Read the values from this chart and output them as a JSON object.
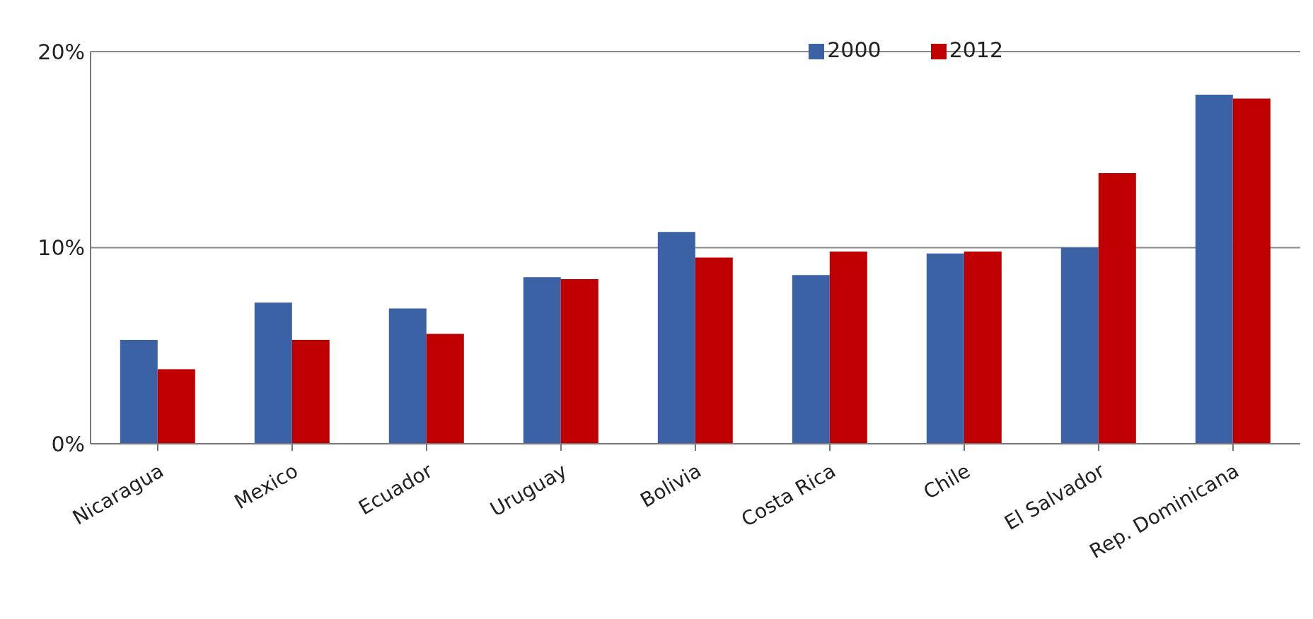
{
  "chart_data": {
    "type": "bar",
    "categories": [
      "Nicaragua",
      "Mexico",
      "Ecuador",
      "Uruguay",
      "Bolivia",
      "Costa Rica",
      "Chile",
      "El Salvador",
      "Rep. Dominicana"
    ],
    "series": [
      {
        "name": "2000",
        "color": "#3a62a4",
        "values": [
          5.3,
          7.2,
          6.9,
          8.5,
          10.8,
          8.6,
          9.7,
          10.0,
          17.8
        ]
      },
      {
        "name": "2012",
        "color": "#c00000",
        "values": [
          3.8,
          5.3,
          5.6,
          8.4,
          9.5,
          9.8,
          9.8,
          13.8,
          17.6
        ]
      }
    ],
    "ylim": [
      0,
      20
    ],
    "yticks": [
      {
        "value": 0,
        "label": "0%"
      },
      {
        "value": 10,
        "label": "10%"
      },
      {
        "value": 20,
        "label": "20%"
      }
    ],
    "grid": "y",
    "legend": "top right"
  }
}
